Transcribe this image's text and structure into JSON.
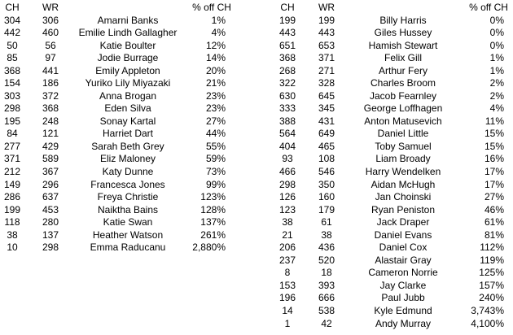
{
  "headers": {
    "ch": "CH",
    "wr": "WR",
    "name": "",
    "pct": "% off CH"
  },
  "women": [
    {
      "ch": "304",
      "wr": "306",
      "name": "Amarni Banks",
      "pct": "1%"
    },
    {
      "ch": "442",
      "wr": "460",
      "name": "Emilie Lindh Gallagher",
      "pct": "4%"
    },
    {
      "ch": "50",
      "wr": "56",
      "name": "Katie Boulter",
      "pct": "12%"
    },
    {
      "ch": "85",
      "wr": "97",
      "name": "Jodie Burrage",
      "pct": "14%"
    },
    {
      "ch": "368",
      "wr": "441",
      "name": "Emily Appleton",
      "pct": "20%"
    },
    {
      "ch": "154",
      "wr": "186",
      "name": "Yuriko Lily Miyazaki",
      "pct": "21%"
    },
    {
      "ch": "303",
      "wr": "372",
      "name": "Anna Brogan",
      "pct": "23%"
    },
    {
      "ch": "298",
      "wr": "368",
      "name": "Eden Silva",
      "pct": "23%"
    },
    {
      "ch": "195",
      "wr": "248",
      "name": "Sonay Kartal",
      "pct": "27%"
    },
    {
      "ch": "84",
      "wr": "121",
      "name": "Harriet Dart",
      "pct": "44%"
    },
    {
      "ch": "277",
      "wr": "429",
      "name": "Sarah Beth Grey",
      "pct": "55%"
    },
    {
      "ch": "371",
      "wr": "589",
      "name": "Eliz Maloney",
      "pct": "59%"
    },
    {
      "ch": "212",
      "wr": "367",
      "name": "Katy Dunne",
      "pct": "73%"
    },
    {
      "ch": "149",
      "wr": "296",
      "name": "Francesca Jones",
      "pct": "99%"
    },
    {
      "ch": "286",
      "wr": "637",
      "name": "Freya Christie",
      "pct": "123%"
    },
    {
      "ch": "199",
      "wr": "453",
      "name": "Naiktha Bains",
      "pct": "128%"
    },
    {
      "ch": "118",
      "wr": "280",
      "name": "Katie Swan",
      "pct": "137%"
    },
    {
      "ch": "38",
      "wr": "137",
      "name": "Heather Watson",
      "pct": "261%"
    },
    {
      "ch": "10",
      "wr": "298",
      "name": "Emma Raducanu",
      "pct": "2,880%"
    }
  ],
  "men": [
    {
      "ch": "199",
      "wr": "199",
      "name": "Billy Harris",
      "pct": "0%"
    },
    {
      "ch": "443",
      "wr": "443",
      "name": "Giles Hussey",
      "pct": "0%"
    },
    {
      "ch": "651",
      "wr": "653",
      "name": "Hamish Stewart",
      "pct": "0%"
    },
    {
      "ch": "368",
      "wr": "371",
      "name": "Felix Gill",
      "pct": "1%"
    },
    {
      "ch": "268",
      "wr": "271",
      "name": "Arthur Fery",
      "pct": "1%"
    },
    {
      "ch": "322",
      "wr": "328",
      "name": "Charles Broom",
      "pct": "2%"
    },
    {
      "ch": "630",
      "wr": "645",
      "name": "Jacob Fearnley",
      "pct": "2%"
    },
    {
      "ch": "333",
      "wr": "345",
      "name": "George Loffhagen",
      "pct": "4%"
    },
    {
      "ch": "388",
      "wr": "431",
      "name": "Anton Matusevich",
      "pct": "11%"
    },
    {
      "ch": "564",
      "wr": "649",
      "name": "Daniel Little",
      "pct": "15%"
    },
    {
      "ch": "404",
      "wr": "465",
      "name": "Toby Samuel",
      "pct": "15%"
    },
    {
      "ch": "93",
      "wr": "108",
      "name": "Liam Broady",
      "pct": "16%"
    },
    {
      "ch": "466",
      "wr": "546",
      "name": "Harry Wendelken",
      "pct": "17%"
    },
    {
      "ch": "298",
      "wr": "350",
      "name": "Aidan McHugh",
      "pct": "17%"
    },
    {
      "ch": "126",
      "wr": "160",
      "name": "Jan Choinski",
      "pct": "27%"
    },
    {
      "ch": "123",
      "wr": "179",
      "name": "Ryan Peniston",
      "pct": "46%"
    },
    {
      "ch": "38",
      "wr": "61",
      "name": "Jack Draper",
      "pct": "61%"
    },
    {
      "ch": "21",
      "wr": "38",
      "name": "Daniel Evans",
      "pct": "81%"
    },
    {
      "ch": "206",
      "wr": "436",
      "name": "Daniel Cox",
      "pct": "112%"
    },
    {
      "ch": "237",
      "wr": "520",
      "name": "Alastair Gray",
      "pct": "119%"
    },
    {
      "ch": "8",
      "wr": "18",
      "name": "Cameron Norrie",
      "pct": "125%"
    },
    {
      "ch": "153",
      "wr": "393",
      "name": "Jay Clarke",
      "pct": "157%"
    },
    {
      "ch": "196",
      "wr": "666",
      "name": "Paul Jubb",
      "pct": "240%"
    },
    {
      "ch": "14",
      "wr": "538",
      "name": "Kyle Edmund",
      "pct": "3,743%"
    },
    {
      "ch": "1",
      "wr": "42",
      "name": "Andy Murray",
      "pct": "4,100%"
    }
  ]
}
